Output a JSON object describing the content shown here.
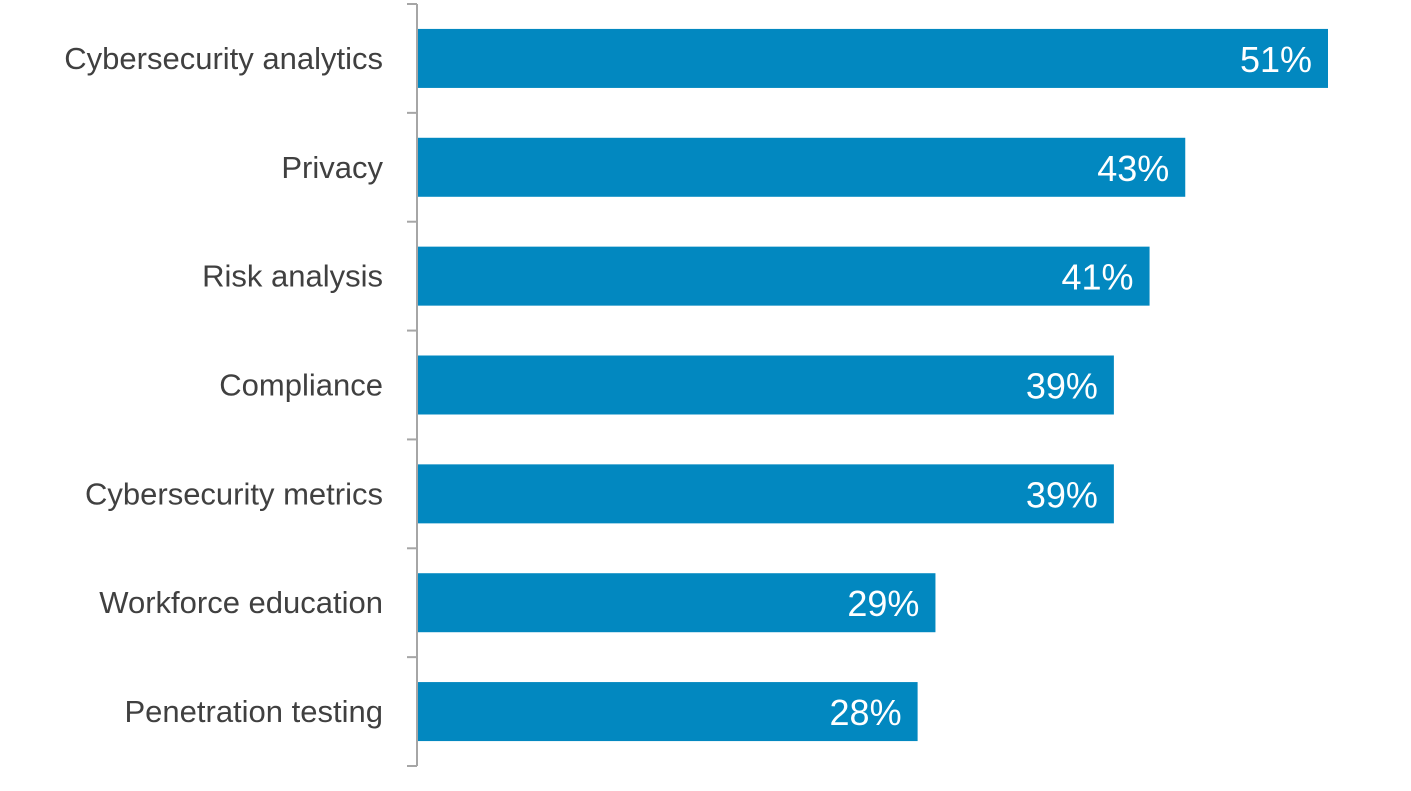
{
  "chart_data": {
    "type": "bar",
    "orientation": "horizontal",
    "categories": [
      "Cybersecurity analytics",
      "Privacy",
      "Risk analysis",
      "Compliance",
      "Cybersecurity metrics",
      "Workforce education",
      "Penetration testing"
    ],
    "values": [
      51,
      43,
      41,
      39,
      39,
      29,
      28
    ],
    "data_labels": [
      "51%",
      "43%",
      "41%",
      "39%",
      "39%",
      "29%",
      "28%"
    ],
    "title": "",
    "xlabel": "",
    "ylabel": "",
    "xlim": [
      0,
      51
    ],
    "grid": false,
    "legend": "none",
    "bar_color": "#0288C0",
    "axis_color": "#A6A6A6"
  }
}
